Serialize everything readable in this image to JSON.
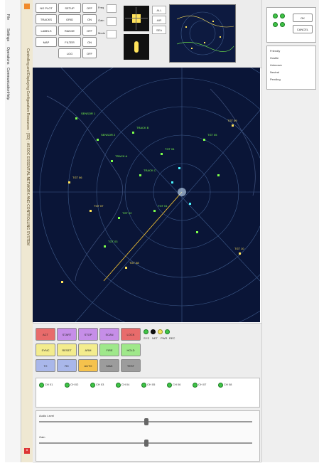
{
  "window": {
    "title": "Controlling and Displaying Configuration Resources - [SD] - ASSOC ESSENTIAL NETWORK AND CONTROLLING SYSTEM"
  },
  "menu": [
    "File",
    "Settings",
    "Operations",
    "Communication",
    "Help"
  ],
  "toolbar": {
    "rows": [
      [
        "NO PLOT",
        "TRACKS",
        "LABELS",
        "MAP"
      ],
      [
        "SETUP",
        "GRID",
        "RANGE",
        "FILTER",
        "LOG"
      ],
      [
        "OFF",
        "ON",
        "OFF",
        "ON",
        "OFF"
      ]
    ],
    "small_labels": [
      "Freq",
      "Gain",
      "Mode"
    ]
  },
  "scope": {
    "labels": [
      "SENSOR 1",
      "SENSOR 2",
      "TRACK A",
      "TRACK B",
      "TRACK C",
      "TGT 01",
      "TGT 02",
      "TGT 03",
      "TGT 04",
      "TGT 05",
      "TGT 06",
      "TGT 07",
      "TGT 08",
      "TGT 09",
      "TGT 10"
    ]
  },
  "mini_scope": {
    "options": [
      "ALL",
      "AIR",
      "SEA"
    ]
  },
  "left_panel": {
    "buttons": [
      "ACT",
      "START",
      "STOP",
      "SCAN",
      "LOCK",
      "SYNC",
      "RESET",
      "ARM",
      "FIRE",
      "HOLD",
      "TX",
      "RX",
      "AUTO",
      "MAN",
      "TEST"
    ],
    "status_labels": [
      "SYS",
      "NET",
      "PWR",
      "REC"
    ]
  },
  "bottom_panel": {
    "channels": [
      "CH 01",
      "CH 02",
      "CH 03",
      "CH 04",
      "CH 05",
      "CH 06",
      "CH 07",
      "CH 08"
    ],
    "sliders": [
      {
        "label": "Audio Level",
        "level": 0.5
      },
      {
        "label": "Gain",
        "level": 0.5
      }
    ]
  },
  "right_panel": {
    "legend": [
      "Friendly",
      "Hostile",
      "Unknown",
      "Neutral",
      "Pending"
    ],
    "buttons": [
      "OK",
      "CANCEL"
    ]
  },
  "colors": {
    "scope_bg": "#0a1537",
    "grid": "#3e5a8a",
    "track_green": "#7cff4a",
    "track_yellow": "#ffe35a",
    "track_cyan": "#4af5ff",
    "btn_red": "#e86b6b",
    "btn_purple": "#c68ee8",
    "btn_yellow": "#f3ec8e",
    "btn_green": "#9fe88a",
    "btn_blue": "#a9b7ea",
    "btn_orange": "#f5c24c",
    "btn_gray": "#9c9c9c"
  }
}
